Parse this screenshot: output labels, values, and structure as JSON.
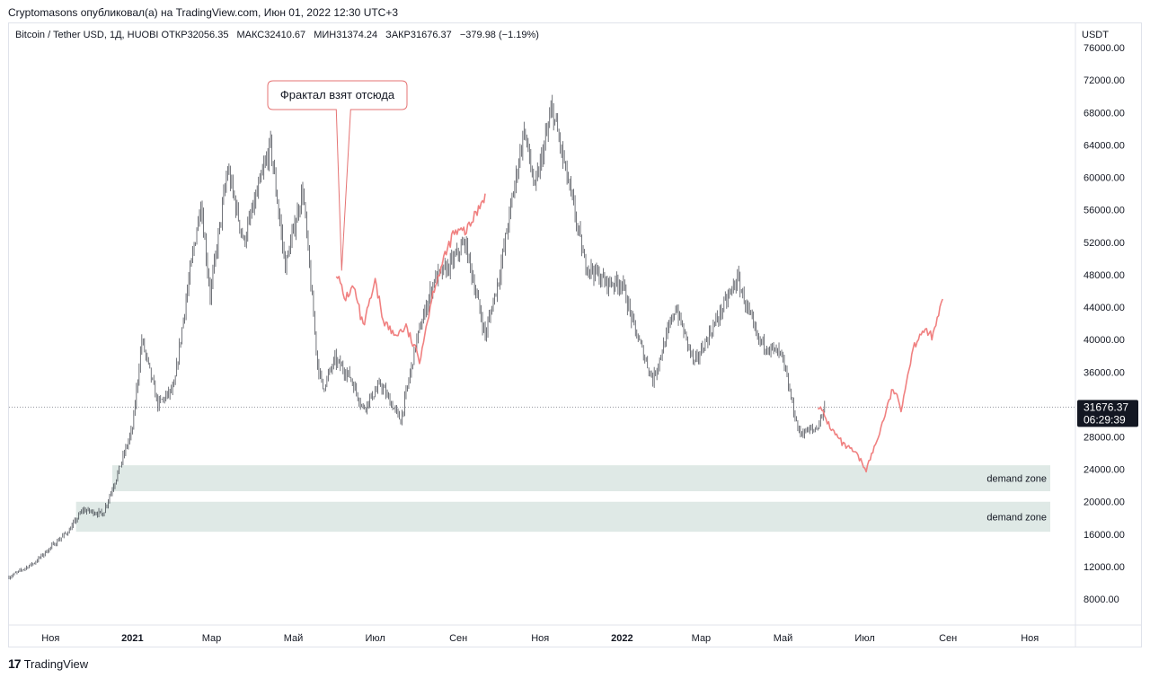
{
  "publication_line": "Cryptomasons опубликовал(а) на TradingView.com, Июн 01, 2022 12:30 UTC+3",
  "footer": {
    "logo_glyph": "17",
    "brand": "TradingView"
  },
  "header": {
    "symbol": "Bitcoin / Tether USD, 1Д, HUOBI",
    "open_label": "ОТКР",
    "open_value": "32056.35",
    "high_label": "МАКС",
    "high_value": "32410.67",
    "low_label": "МИН",
    "low_value": "31374.24",
    "close_label": "ЗАКР",
    "close_value": "31676.37",
    "change": "−379.98 (−1.19%)"
  },
  "annotation": {
    "text": "Фрактал взят отсюда"
  },
  "price_badge": {
    "price": "31676.37",
    "countdown": "06:29:39"
  },
  "colors": {
    "candles": "#131722",
    "fractal": "#f08080",
    "zone": "#dfe9e6",
    "annotation_border": "#e57373",
    "badge": "#131722"
  },
  "chart_data": {
    "type": "candlestick",
    "title": "",
    "currency_label": "USDT",
    "y_ticks": [
      "8000.00",
      "12000.00",
      "16000.00",
      "20000.00",
      "24000.00",
      "28000.00",
      "32000.00",
      "36000.00",
      "40000.00",
      "44000.00",
      "48000.00",
      "52000.00",
      "56000.00",
      "60000.00",
      "64000.00",
      "68000.00",
      "72000.00",
      "76000.00"
    ],
    "ylim": [
      4800,
      79000
    ],
    "x_ticks": [
      {
        "label": "Ноя",
        "date": "2020-11-01",
        "bold": false
      },
      {
        "label": "2021",
        "date": "2021-01-01",
        "bold": true
      },
      {
        "label": "Мар",
        "date": "2021-03-01",
        "bold": false
      },
      {
        "label": "Май",
        "date": "2021-05-01",
        "bold": false
      },
      {
        "label": "Июл",
        "date": "2021-07-01",
        "bold": false
      },
      {
        "label": "Сен",
        "date": "2021-09-01",
        "bold": false
      },
      {
        "label": "Ноя",
        "date": "2021-11-01",
        "bold": false
      },
      {
        "label": "2022",
        "date": "2022-01-01",
        "bold": true
      },
      {
        "label": "Мар",
        "date": "2022-03-01",
        "bold": false
      },
      {
        "label": "Май",
        "date": "2022-05-01",
        "bold": false
      },
      {
        "label": "Июл",
        "date": "2022-07-01",
        "bold": false
      },
      {
        "label": "Сен",
        "date": "2022-09-01",
        "bold": false
      },
      {
        "label": "Ноя",
        "date": "2022-11-01",
        "bold": false
      }
    ],
    "xlim": [
      "2020-10-01",
      "2022-12-05"
    ],
    "last_price": 31676.37,
    "price_path": [
      [
        "2020-10-01",
        10700
      ],
      [
        "2020-10-20",
        12500
      ],
      [
        "2020-11-05",
        15000
      ],
      [
        "2020-11-15",
        16500
      ],
      [
        "2020-11-25",
        19000
      ],
      [
        "2020-12-10",
        18500
      ],
      [
        "2020-12-20",
        23000
      ],
      [
        "2021-01-01",
        29000
      ],
      [
        "2021-01-08",
        40000
      ],
      [
        "2021-01-20",
        32000
      ],
      [
        "2021-02-01",
        34000
      ],
      [
        "2021-02-10",
        45000
      ],
      [
        "2021-02-21",
        57000
      ],
      [
        "2021-02-28",
        45500
      ],
      [
        "2021-03-13",
        61000
      ],
      [
        "2021-03-25",
        52000
      ],
      [
        "2021-04-14",
        64000
      ],
      [
        "2021-04-25",
        49000
      ],
      [
        "2021-05-08",
        58500
      ],
      [
        "2021-05-19",
        37000
      ],
      [
        "2021-05-23",
        34000
      ],
      [
        "2021-06-01",
        37500
      ],
      [
        "2021-06-12",
        35500
      ],
      [
        "2021-06-22",
        31500
      ],
      [
        "2021-07-05",
        34500
      ],
      [
        "2021-07-20",
        30000
      ],
      [
        "2021-08-01",
        40000
      ],
      [
        "2021-08-14",
        47500
      ],
      [
        "2021-08-25",
        49000
      ],
      [
        "2021-09-06",
        52000
      ],
      [
        "2021-09-21",
        40500
      ],
      [
        "2021-10-01",
        47500
      ],
      [
        "2021-10-20",
        66000
      ],
      [
        "2021-10-28",
        58500
      ],
      [
        "2021-11-10",
        68500
      ],
      [
        "2021-11-25",
        57000
      ],
      [
        "2021-12-04",
        49500
      ],
      [
        "2021-12-20",
        47000
      ],
      [
        "2022-01-01",
        47000
      ],
      [
        "2022-01-10",
        41500
      ],
      [
        "2022-01-24",
        35000
      ],
      [
        "2022-02-10",
        44000
      ],
      [
        "2022-02-24",
        37000
      ],
      [
        "2022-03-28",
        47500
      ],
      [
        "2022-04-12",
        40000
      ],
      [
        "2022-04-30",
        38000
      ],
      [
        "2022-05-10",
        30500
      ],
      [
        "2022-05-13",
        28500
      ],
      [
        "2022-05-26",
        29000
      ],
      [
        "2022-06-01",
        31676
      ]
    ],
    "fractal_path": [
      [
        "2021-06-02",
        48500
      ],
      [
        "2021-06-08",
        45000
      ],
      [
        "2021-06-15",
        46500
      ],
      [
        "2021-06-22",
        41500
      ],
      [
        "2021-07-01",
        47000
      ],
      [
        "2021-07-07",
        42500
      ],
      [
        "2021-07-15",
        40500
      ],
      [
        "2021-07-24",
        41500
      ],
      [
        "2021-08-03",
        37500
      ],
      [
        "2021-08-14",
        46500
      ],
      [
        "2021-08-28",
        53000
      ],
      [
        "2021-09-08",
        53500
      ],
      [
        "2021-09-21",
        58000
      ],
      [
        "2022-05-27",
        32000
      ],
      [
        "2022-06-06",
        29000
      ],
      [
        "2022-06-15",
        27000
      ],
      [
        "2022-06-24",
        26000
      ],
      [
        "2022-07-02",
        24000
      ],
      [
        "2022-07-10",
        27500
      ],
      [
        "2022-07-22",
        34000
      ],
      [
        "2022-07-28",
        31500
      ],
      [
        "2022-08-06",
        39000
      ],
      [
        "2022-08-12",
        41000
      ],
      [
        "2022-08-21",
        40500
      ],
      [
        "2022-08-28",
        45000
      ]
    ],
    "zones": [
      {
        "label": "demand zone",
        "from": 21300,
        "to": 24500
      },
      {
        "label": "demand zone",
        "from": 16300,
        "to": 20000
      }
    ],
    "annotation_target": [
      "2021-06-06",
      48500
    ]
  }
}
